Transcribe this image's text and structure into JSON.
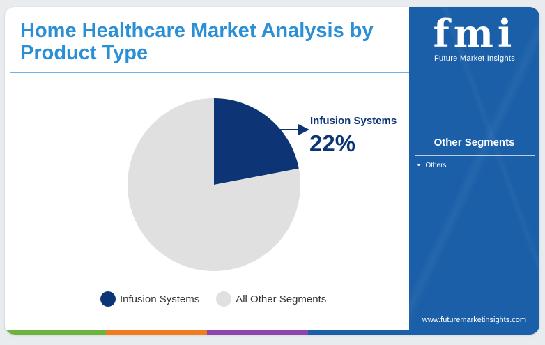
{
  "title": "Home Healthcare Market Analysis by Product Type",
  "chart_data": {
    "type": "pie",
    "slices": [
      {
        "label": "Infusion Systems",
        "value": 22,
        "color": "#0d3575"
      },
      {
        "label": "All Other Segments",
        "value": 78,
        "color": "#e0e0e0"
      }
    ],
    "callout": {
      "label": "Infusion Systems",
      "value": "22%"
    },
    "legend": [
      "Infusion Systems",
      "All Other Segments"
    ]
  },
  "sidebar": {
    "logo_mark": "fmi",
    "logo_text": "Future Market Insights",
    "heading": "Other Segments",
    "items": [
      "Others"
    ],
    "url": "www.futuremarketinsights.com",
    "background": "#1a5fa8"
  },
  "footer_colors": [
    "#6db33f",
    "#f07c21",
    "#8e44ad",
    "#1a5fa8"
  ]
}
